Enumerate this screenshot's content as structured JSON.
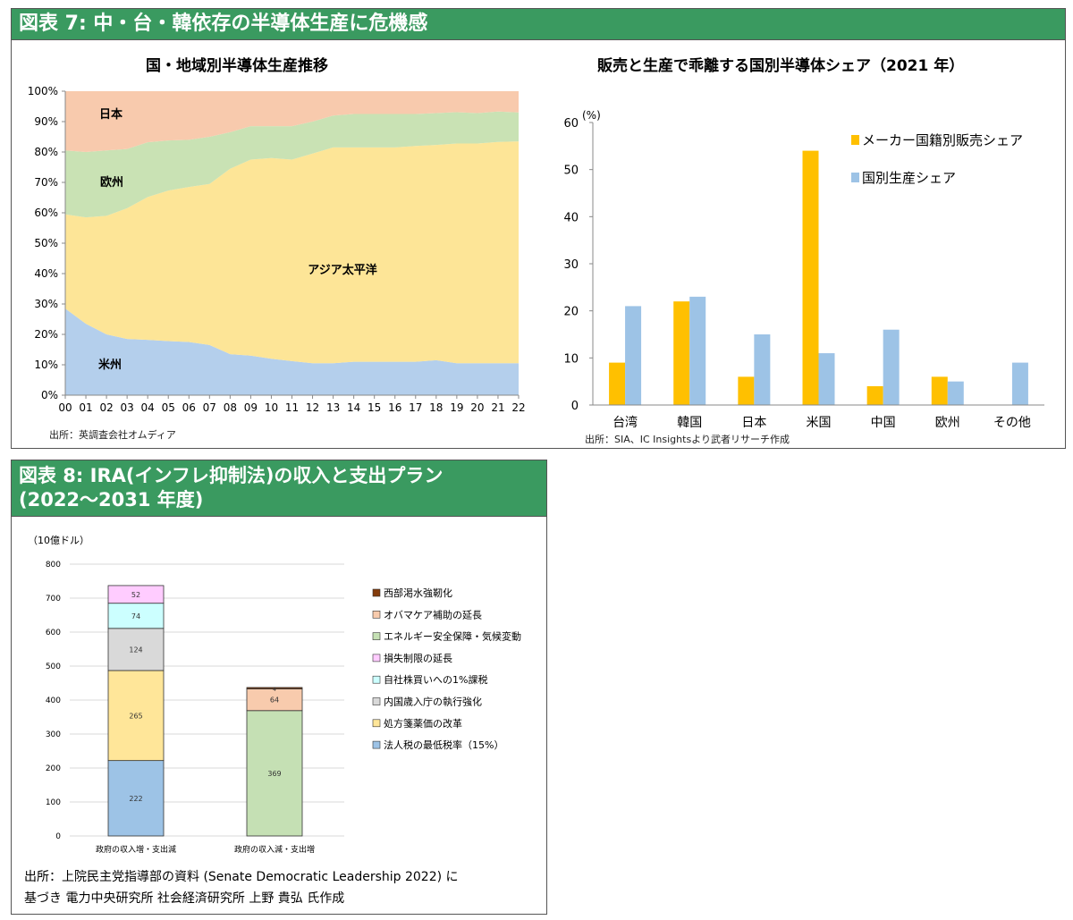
{
  "fig7": {
    "header": "図表 7: 中・台・韓依存の半導体生産に危機感",
    "area_title": "国・地域別半導体生産推移",
    "area_source": "出所：英調査会社オムディア",
    "bar_title": "販売と生産で乖離する国別半導体シェア（2021 年）",
    "bar_source": "出所：SIA、IC Insightsより武者リサーチ作成",
    "bar_unit": "(%)"
  },
  "fig8": {
    "header_line1": "図表 8: IRA(インフレ抑制法)の収入と支出プラン",
    "header_line2": "(2022～2031 年度)",
    "unit": "（10億ドル）",
    "source_line1": "出所：上院民主党指導部の資料 (Senate Democratic Leadership 2022) に",
    "source_line2": "基づき 電力中央研究所 社会経済研究所 上野 貴弘 氏作成"
  },
  "chart_data": [
    {
      "type": "area",
      "stacked": true,
      "title": "国・地域別半導体生産推移",
      "categories": [
        "00",
        "01",
        "02",
        "03",
        "04",
        "05",
        "06",
        "07",
        "08",
        "09",
        "10",
        "11",
        "12",
        "13",
        "14",
        "15",
        "16",
        "17",
        "18",
        "19",
        "20",
        "21",
        "22"
      ],
      "ylim": [
        0,
        100
      ],
      "yticks": [
        "0%",
        "10%",
        "20%",
        "30%",
        "40%",
        "50%",
        "60%",
        "70%",
        "80%",
        "90%",
        "100%"
      ],
      "series": [
        {
          "name": "米州",
          "color": "#b4cfec",
          "values": [
            28.5,
            23.5,
            20,
            18.5,
            18.2,
            17.8,
            17.5,
            16.5,
            13.5,
            13,
            12,
            11.2,
            10.5,
            10.5,
            11,
            11,
            11,
            11,
            11.5,
            10.5,
            10.5,
            10.5,
            10.5
          ]
        },
        {
          "name": "アジア太平洋",
          "color": "#fde597",
          "values": [
            31,
            35,
            39,
            43,
            47,
            49.5,
            51,
            53,
            61,
            64.5,
            66,
            66.3,
            69,
            71,
            70.5,
            70.5,
            70.5,
            71,
            70.8,
            72.3,
            72.3,
            72.8,
            73
          ]
        },
        {
          "name": "欧州",
          "color": "#c9e2b4",
          "values": [
            21,
            21.5,
            21.5,
            19.5,
            18,
            16.5,
            15.5,
            15.5,
            12,
            11,
            10.5,
            11,
            10.5,
            10.5,
            11,
            11,
            11,
            10.5,
            10.5,
            10.3,
            10,
            10,
            9.5
          ]
        },
        {
          "name": "日本",
          "color": "#f8caad",
          "values": [
            19.5,
            20,
            19.5,
            19,
            16.8,
            16.2,
            16,
            15,
            13.5,
            11.5,
            11.5,
            11.5,
            10,
            8,
            7.5,
            7.5,
            7.5,
            7.5,
            7.2,
            6.9,
            7.2,
            6.7,
            7
          ]
        }
      ]
    },
    {
      "type": "bar",
      "title": "販売と生産で乖離する国別半導体シェア（2021 年）",
      "categories": [
        "台湾",
        "韓国",
        "日本",
        "米国",
        "中国",
        "欧州",
        "その他"
      ],
      "ylim": [
        0,
        60
      ],
      "yticks": [
        "0",
        "10",
        "20",
        "30",
        "40",
        "50",
        "60"
      ],
      "series": [
        {
          "name": "メーカー国籍別販売シェア",
          "color": "#ffc000",
          "values": [
            9,
            22,
            6,
            54,
            4,
            6,
            0
          ]
        },
        {
          "name": "国別生産シェア",
          "color": "#9dc3e6",
          "values": [
            21,
            23,
            15,
            11,
            16,
            5,
            9
          ]
        }
      ]
    },
    {
      "type": "bar",
      "stacked": true,
      "categories": [
        "政府の収入増・支出減",
        "政府の収入減・支出増"
      ],
      "ylim": [
        0,
        800
      ],
      "yticks": [
        "0",
        "100",
        "200",
        "300",
        "400",
        "500",
        "600",
        "700",
        "800"
      ],
      "series": [
        {
          "name": "法人税の最低税率（15%）",
          "color": "#9dc3e6",
          "values": [
            222,
            0
          ],
          "labels": [
            "222",
            ""
          ]
        },
        {
          "name": "処方箋薬価の改革",
          "color": "#ffe699",
          "values": [
            265,
            0
          ],
          "labels": [
            "265",
            ""
          ]
        },
        {
          "name": "内国歳入庁の執行強化",
          "color": "#d9d9d9",
          "values": [
            124,
            0
          ],
          "labels": [
            "124",
            ""
          ]
        },
        {
          "name": "自社株買いへの1%課税",
          "color": "#ccffff",
          "values": [
            74,
            0
          ],
          "labels": [
            "74",
            ""
          ]
        },
        {
          "name": "損失制限の延長",
          "color": "#ffccff",
          "values": [
            52,
            0
          ],
          "labels": [
            "52",
            ""
          ]
        },
        {
          "name": "エネルギー安全保障・気候変動",
          "color": "#c5e0b4",
          "values": [
            0,
            369
          ],
          "labels": [
            "",
            "369"
          ]
        },
        {
          "name": "オバマケア補助の延長",
          "color": "#f8cbad",
          "values": [
            0,
            64
          ],
          "labels": [
            "",
            "64"
          ]
        },
        {
          "name": "西部渇水強靭化",
          "color": "#843c0c",
          "values": [
            0,
            4
          ],
          "labels": [
            "",
            "4"
          ]
        }
      ],
      "legend_order": [
        "西部渇水強靭化",
        "オバマケア補助の延長",
        "エネルギー安全保障・気候変動",
        "損失制限の延長",
        "自社株買いへの1%課税",
        "内国歳入庁の執行強化",
        "処方箋薬価の改革",
        "法人税の最低税率（15%）"
      ]
    }
  ]
}
